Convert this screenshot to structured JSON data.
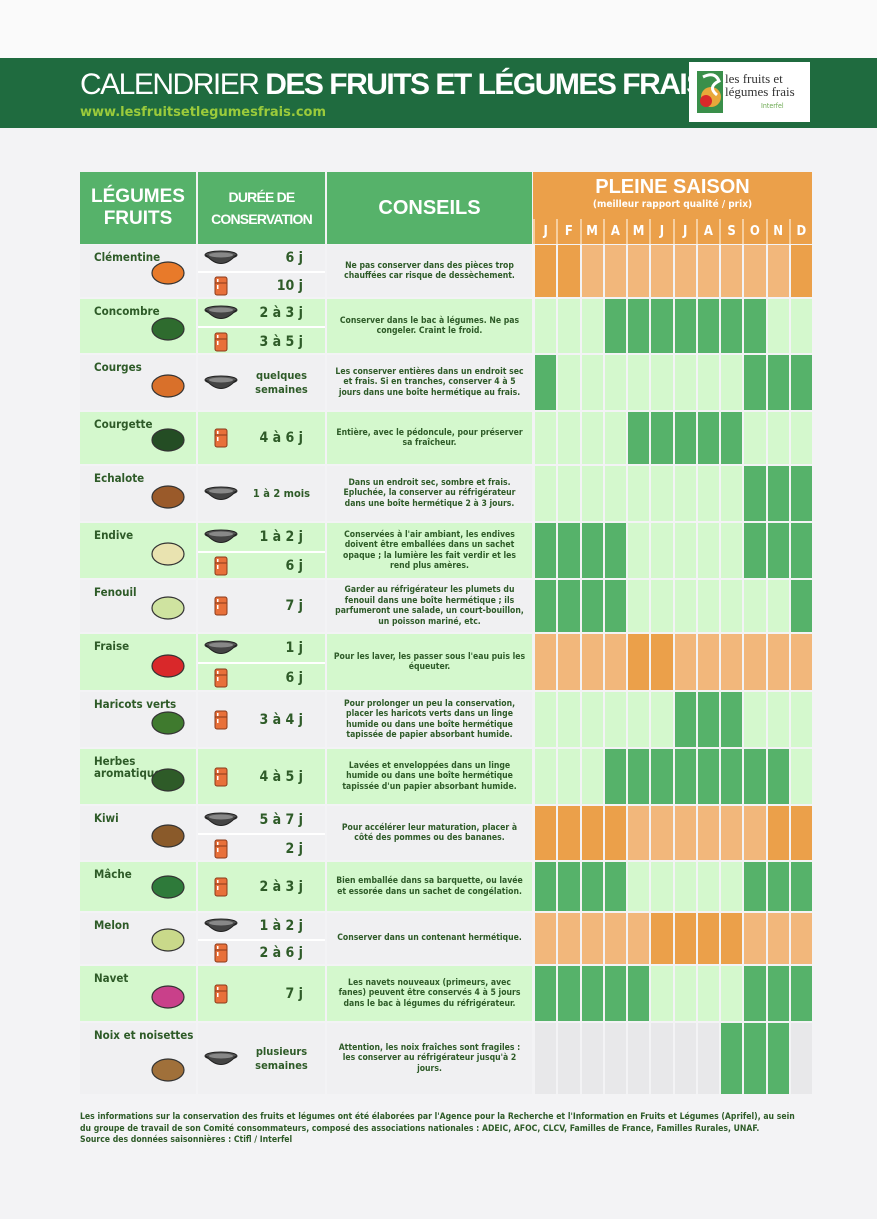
{
  "header": {
    "title_light": "CALENDRIER",
    "title_bold": "DES FRUITS ET LÉGUMES FRAIS",
    "url": "www.lesfruitsetlegumesfrais.com",
    "logo": {
      "text_line1": "les fruits et",
      "text_line2": "légumes frais",
      "sub": "Interfel"
    }
  },
  "colors": {
    "band": "#1f6b3f",
    "header_green": "#56b26a",
    "header_orange": "#eba04a",
    "row_grey": "#f0f0f2",
    "row_green": "#d4f8cd",
    "season_green": "#56b26a",
    "offseason_green": "#d4f8cd",
    "season_orange": "#eba04a",
    "offseason_orange": "#f2b77b",
    "offseason_grey": "#e8e8ea"
  },
  "table_header": {
    "col1": [
      "LÉGUMES",
      "FRUITS"
    ],
    "col2": [
      "DURÉE DE",
      "CONSERVATION"
    ],
    "col3": "CONSEILS",
    "season_title": "PLEINE SAISON",
    "season_subtitle": "(meilleur rapport qualité / prix)",
    "months": [
      "J",
      "F",
      "M",
      "A",
      "M",
      "J",
      "J",
      "A",
      "S",
      "O",
      "N",
      "D"
    ]
  },
  "icons": {
    "bowl": "fruit-bowl-icon",
    "fridge": "refrigerator-icon"
  },
  "rows": [
    {
      "name": "Clémentine",
      "type": "fruit",
      "bg": "grey",
      "illustration_color": "#e87a2a",
      "durations": [
        {
          "icon": "bowl",
          "text": "6 j"
        },
        {
          "icon": "fridge",
          "text": "10 j"
        }
      ],
      "advice": "Ne pas conserver dans des pièces trop chauffées  car risque de dessèchement.",
      "season": [
        1,
        1,
        0,
        0,
        0,
        0,
        0,
        0,
        0,
        0,
        0,
        1
      ]
    },
    {
      "name": "Concombre",
      "type": "veg",
      "bg": "green",
      "illustration_color": "#2e6b2e",
      "durations": [
        {
          "icon": "bowl",
          "text": "2 à 3 j"
        },
        {
          "icon": "fridge",
          "text": "3 à 5 j"
        }
      ],
      "advice": "Conserver dans le bac à légumes. Ne pas congeler. Craint le froid.",
      "season": [
        0,
        0,
        0,
        1,
        1,
        1,
        1,
        1,
        1,
        1,
        0,
        0
      ]
    },
    {
      "name": "Courges",
      "type": "veg",
      "bg": "grey",
      "illustration_color": "#d9702a",
      "durations": [
        {
          "icon": "bowl",
          "text": "quelques semaines"
        }
      ],
      "advice": "Les conserver entières dans un endroit sec et frais. Si en tranches, conserver 4 à 5 jours dans une boîte hermétique au frais.",
      "season": [
        1,
        0,
        0,
        0,
        0,
        0,
        0,
        0,
        0,
        1,
        1,
        1
      ]
    },
    {
      "name": "Courgette",
      "type": "veg",
      "bg": "green",
      "illustration_color": "#244d24",
      "durations": [
        {
          "icon": "fridge",
          "text": "4 à 6 j"
        }
      ],
      "advice": "Entière, avec le pédoncule, pour préserver sa fraîcheur.",
      "season": [
        0,
        0,
        0,
        0,
        1,
        1,
        1,
        1,
        1,
        0,
        0,
        0
      ]
    },
    {
      "name": "Echalote",
      "type": "veg",
      "bg": "grey",
      "illustration_color": "#9a5a2a",
      "durations": [
        {
          "icon": "bowl",
          "text": "1 à 2 mois"
        }
      ],
      "advice": "Dans un endroit sec, sombre et frais. Epluchée, la conserver au réfrigérateur dans une boîte hermétique 2 à 3 jours.",
      "season": [
        0,
        0,
        0,
        0,
        0,
        0,
        0,
        0,
        0,
        1,
        1,
        1
      ]
    },
    {
      "name": "Endive",
      "type": "veg",
      "bg": "green",
      "illustration_color": "#e9e3b0",
      "durations": [
        {
          "icon": "bowl",
          "text": "1 à 2 j"
        },
        {
          "icon": "fridge",
          "text": "6 j"
        }
      ],
      "advice": "Conservées à l'air ambiant, les endives doivent être emballées dans un sachet opaque ; la lumière les fait verdir et les rend plus amères.",
      "season": [
        1,
        1,
        1,
        1,
        0,
        0,
        0,
        0,
        0,
        1,
        1,
        1
      ]
    },
    {
      "name": "Fenouil",
      "type": "veg",
      "bg": "grey",
      "illustration_color": "#cfe3a0",
      "durations": [
        {
          "icon": "fridge",
          "text": "7 j"
        }
      ],
      "advice": "Garder au réfrigérateur les plumets du fenouil dans une boîte hermétique ; ils parfumeront une salade, un court-bouillon, un poisson mariné, etc.",
      "season": [
        1,
        1,
        1,
        1,
        0,
        0,
        0,
        0,
        0,
        0,
        0,
        1
      ]
    },
    {
      "name": "Fraise",
      "type": "fruit",
      "bg": "green",
      "illustration_color": "#d9282a",
      "durations": [
        {
          "icon": "bowl",
          "text": "1 j"
        },
        {
          "icon": "fridge",
          "text": "6 j"
        }
      ],
      "advice": "Pour les laver, les passer sous l'eau puis les équeuter.",
      "season": [
        0,
        0,
        0,
        0,
        1,
        1,
        0,
        0,
        0,
        0,
        0,
        0
      ]
    },
    {
      "name": "Haricots verts",
      "type": "veg",
      "bg": "grey",
      "illustration_color": "#3f7a2e",
      "durations": [
        {
          "icon": "fridge",
          "text": "3 à 4 j"
        }
      ],
      "advice": "Pour prolonger un peu la conservation, placer les haricots verts dans un linge humide ou dans une boîte hermétique tapissée de papier absorbant humide.",
      "season": [
        0,
        0,
        0,
        0,
        0,
        0,
        1,
        1,
        1,
        0,
        0,
        0
      ]
    },
    {
      "name": "Herbes aromatiques",
      "type": "veg",
      "bg": "green",
      "illustration_color": "#2e5b28",
      "durations": [
        {
          "icon": "fridge",
          "text": "4 à 5 j"
        }
      ],
      "advice": "Lavées et enveloppées dans un linge humide ou dans une boîte hermétique tapissée d'un papier absorbant humide.",
      "season": [
        0,
        0,
        0,
        1,
        1,
        1,
        1,
        1,
        1,
        1,
        1,
        0
      ]
    },
    {
      "name": "Kiwi",
      "type": "fruit",
      "bg": "grey",
      "illustration_color": "#8a5a2a",
      "durations": [
        {
          "icon": "bowl",
          "text": "5 à 7 j"
        },
        {
          "icon": "fridge",
          "text": "2 j"
        }
      ],
      "advice": "Pour accélérer leur maturation, placer à côté des pommes ou des bananes.",
      "season": [
        1,
        1,
        1,
        1,
        0,
        0,
        0,
        0,
        0,
        0,
        1,
        1
      ]
    },
    {
      "name": "Mâche",
      "type": "veg",
      "bg": "green",
      "illustration_color": "#2e7a3a",
      "durations": [
        {
          "icon": "fridge",
          "text": "2 à 3 j"
        }
      ],
      "advice": "Bien emballée dans sa barquette, ou lavée et essorée dans un sachet de congélation.",
      "season": [
        1,
        1,
        1,
        1,
        0,
        0,
        0,
        0,
        0,
        1,
        1,
        1
      ]
    },
    {
      "name": "Melon",
      "type": "fruit",
      "bg": "grey",
      "illustration_color": "#c9d98a",
      "durations": [
        {
          "icon": "bowl",
          "text": "1 à 2 j"
        },
        {
          "icon": "fridge",
          "text": "2 à 6 j"
        }
      ],
      "advice": "Conserver dans un contenant hermétique.",
      "season": [
        0,
        0,
        0,
        0,
        0,
        1,
        1,
        1,
        1,
        0,
        0,
        0
      ]
    },
    {
      "name": "Navet",
      "type": "veg",
      "bg": "green",
      "illustration_color": "#c9408a",
      "durations": [
        {
          "icon": "fridge",
          "text": "7 j"
        }
      ],
      "advice": "Les navets nouveaux (primeurs, avec fanes) peuvent être conservés 4 à 5 jours dans le bac à légumes du réfrigérateur.",
      "season": [
        1,
        1,
        1,
        1,
        1,
        0,
        0,
        0,
        0,
        1,
        1,
        1
      ]
    },
    {
      "name": "Noix et noisettes",
      "type": "nut",
      "bg": "grey",
      "illustration_color": "#a0703a",
      "durations": [
        {
          "icon": "bowl",
          "text": "plusieurs semaines"
        }
      ],
      "advice": "Attention, les noix fraîches sont fragiles : les conserver au réfrigérateur jusqu'à 2 jours.",
      "season": [
        0,
        0,
        0,
        0,
        0,
        0,
        0,
        0,
        1,
        1,
        1,
        0
      ]
    }
  ],
  "footer": [
    "Les informations sur la conservation des fruits et légumes ont été élaborées par l'Agence pour la Recherche et l'Information en Fruits et Légumes (Aprifel), au sein",
    "du groupe de travail de son Comité consommateurs, composé des associations nationales : ADEIC, AFOC, CLCV, Familles de France, Familles Rurales, UNAF.",
    "Source des données saisonnières : Ctifl / Interfel"
  ]
}
